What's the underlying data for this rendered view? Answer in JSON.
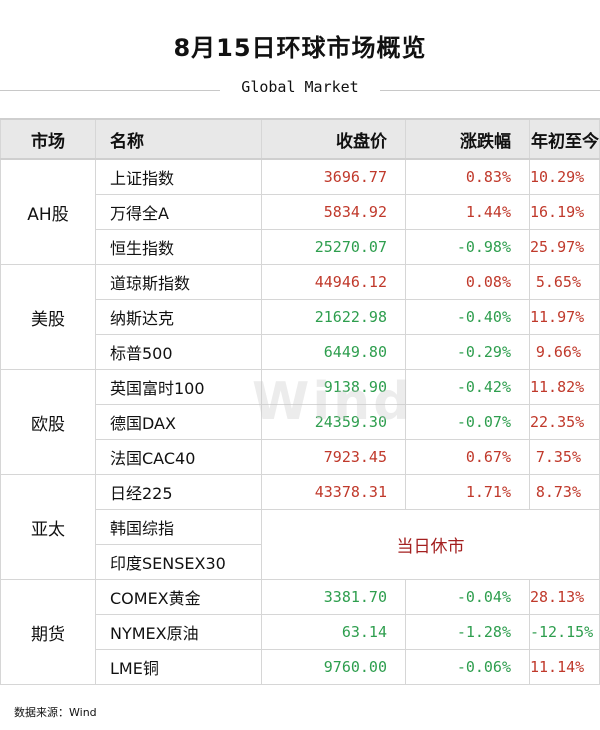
{
  "title": "8月15日环球市场概览",
  "subtitle": "Global Market",
  "watermark": "Wind",
  "source": "数据来源：Wind",
  "colors": {
    "up": "#c0392b",
    "down": "#2e9e4e",
    "closed": "#a42020",
    "header_bg": "#e8e8e8"
  },
  "chart_data": {
    "type": "table",
    "columns": [
      "市场",
      "名称",
      "收盘价",
      "涨跌幅",
      "年初至今"
    ],
    "groups": [
      {
        "market": "AH股",
        "rows": [
          {
            "name": "上证指数",
            "close": "3696.77",
            "change": "0.83%",
            "ytd": "10.29%"
          },
          {
            "name": "万得全A",
            "close": "5834.92",
            "change": "1.44%",
            "ytd": "16.19%"
          },
          {
            "name": "恒生指数",
            "close": "25270.07",
            "change": "-0.98%",
            "ytd": "25.97%"
          }
        ]
      },
      {
        "market": "美股",
        "rows": [
          {
            "name": "道琼斯指数",
            "close": "44946.12",
            "change": "0.08%",
            "ytd": "5.65%"
          },
          {
            "name": "纳斯达克",
            "close": "21622.98",
            "change": "-0.40%",
            "ytd": "11.97%"
          },
          {
            "name": "标普500",
            "close": "6449.80",
            "change": "-0.29%",
            "ytd": "9.66%"
          }
        ]
      },
      {
        "market": "欧股",
        "rows": [
          {
            "name": "英国富时100",
            "close": "9138.90",
            "change": "-0.42%",
            "ytd": "11.82%"
          },
          {
            "name": "德国DAX",
            "close": "24359.30",
            "change": "-0.07%",
            "ytd": "22.35%"
          },
          {
            "name": "法国CAC40",
            "close": "7923.45",
            "change": "0.67%",
            "ytd": "7.35%"
          }
        ]
      },
      {
        "market": "亚太",
        "closed_text": "当日休市",
        "rows": [
          {
            "name": "日经225",
            "close": "43378.31",
            "change": "1.71%",
            "ytd": "8.73%"
          },
          {
            "name": "韩国综指",
            "closed": true
          },
          {
            "name": "印度SENSEX30",
            "closed": true
          }
        ]
      },
      {
        "market": "期货",
        "rows": [
          {
            "name": "COMEX黄金",
            "close": "3381.70",
            "change": "-0.04%",
            "ytd": "28.13%"
          },
          {
            "name": "NYMEX原油",
            "close": "63.14",
            "change": "-1.28%",
            "ytd": "-12.15%"
          },
          {
            "name": "LME铜",
            "close": "9760.00",
            "change": "-0.06%",
            "ytd": "11.14%"
          }
        ]
      }
    ]
  }
}
